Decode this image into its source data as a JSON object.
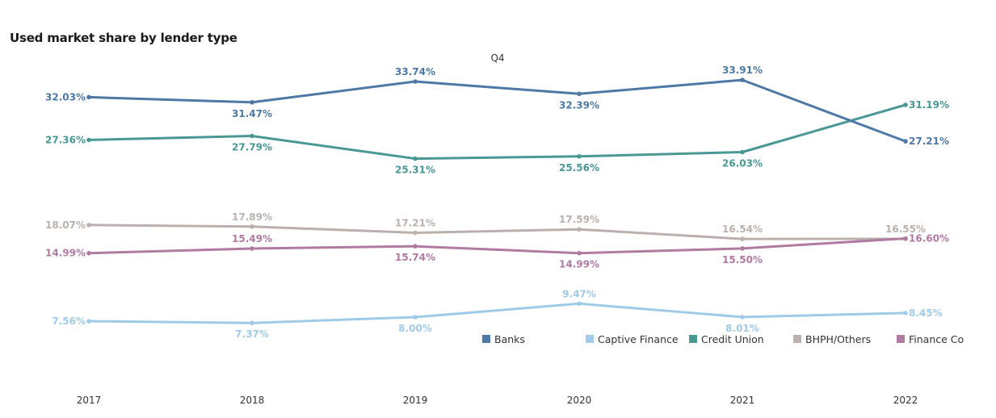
{
  "chart_data": {
    "type": "line",
    "title": "Used market share by lender type",
    "subtitle": "Q4",
    "x": [
      "2017",
      "2018",
      "2019",
      "2020",
      "2021",
      "2022"
    ],
    "ylim": [
      0,
      40
    ],
    "grid": false,
    "legend_placement": "bottom-right",
    "series": [
      {
        "name": "Banks",
        "color": "#4e79a7",
        "values": [
          32.03,
          31.47,
          33.74,
          32.39,
          33.91,
          27.21
        ],
        "labels": [
          "32.03%",
          "31.47%",
          "33.74%",
          "32.39%",
          "33.91%",
          "27.21%"
        ]
      },
      {
        "name": "Captive Finance",
        "color": "#a0cbe8",
        "values": [
          7.56,
          7.37,
          8.0,
          9.47,
          8.01,
          8.45
        ],
        "labels": [
          "7.56%",
          "7.37%",
          "8.00%",
          "9.47%",
          "8.01%",
          "8.45%"
        ]
      },
      {
        "name": "Credit Union",
        "color": "#499894",
        "values": [
          27.36,
          27.79,
          25.31,
          25.56,
          26.03,
          31.19
        ],
        "labels": [
          "27.36%",
          "27.79%",
          "25.31%",
          "25.56%",
          "26.03%",
          "31.19%"
        ]
      },
      {
        "name": "BHPH/Others",
        "color": "#bab0ac",
        "values": [
          18.07,
          17.89,
          17.21,
          17.59,
          16.54,
          16.55
        ],
        "labels": [
          "18.07%",
          "17.89%",
          "17.21%",
          "17.59%",
          "16.54%",
          "16.55%"
        ]
      },
      {
        "name": "Finance Co",
        "color": "#b07aa1",
        "values": [
          14.99,
          15.49,
          15.74,
          14.99,
          15.5,
          16.6
        ],
        "labels": [
          "14.99%",
          "15.49%",
          "15.74%",
          "14.99%",
          "15.50%",
          "16.60%"
        ]
      }
    ]
  }
}
